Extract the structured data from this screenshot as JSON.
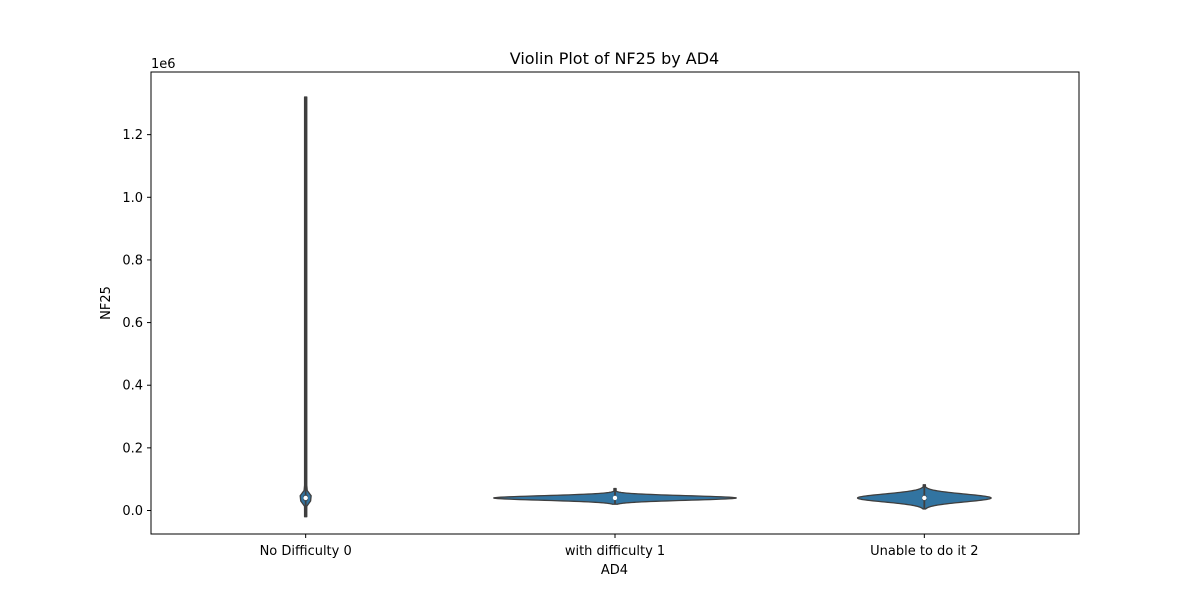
{
  "chart_data": {
    "type": "violin",
    "title": "Violin Plot of NF25 by AD4",
    "xlabel": "AD4",
    "ylabel": "NF25",
    "y_offset_text": "1e6",
    "y_scale_factor": 1000000,
    "categories": [
      "No Difficulty 0",
      "with difficulty 1",
      "Unable to do it 2"
    ],
    "yticks": [
      0.0,
      0.2,
      0.4,
      0.6,
      0.8,
      1.0,
      1.2
    ],
    "ytick_labels": [
      "0.0",
      "0.2",
      "0.4",
      "0.6",
      "0.8",
      "1.0",
      "1.2"
    ],
    "ylim": [
      -0.075,
      1.4
    ],
    "grid": false,
    "legend": "none",
    "colors": {
      "fill": "#3274a1",
      "line": "#3f3f3f",
      "axis": "#000000"
    },
    "violins": [
      {
        "category": "No Difficulty 0",
        "min": -0.02,
        "max": 1.32,
        "q1": 0.032,
        "median": 0.04,
        "q3": 0.048,
        "mode": 0.04,
        "kde_max_width": 0.05
      },
      {
        "category": "with difficulty 1",
        "min": 0.02,
        "max": 0.07,
        "q1": 0.036,
        "median": 0.04,
        "q3": 0.044,
        "mode": 0.04,
        "kde_max_width": 0.98
      },
      {
        "category": "Unable to do it 2",
        "min": 0.005,
        "max": 0.082,
        "q1": 0.033,
        "median": 0.04,
        "q3": 0.047,
        "mode": 0.04,
        "kde_max_width": 0.54
      }
    ]
  }
}
